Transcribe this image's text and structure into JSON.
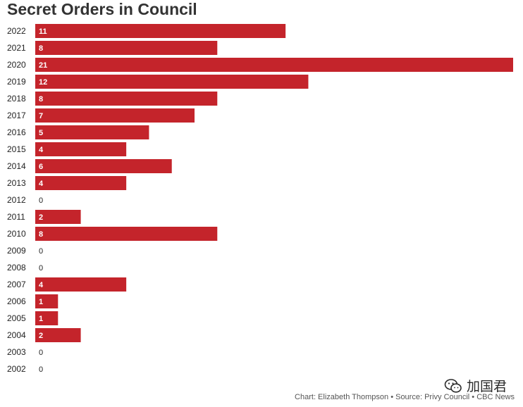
{
  "chart_data": {
    "type": "bar",
    "orientation": "horizontal",
    "title": "Secret Orders in Council",
    "xlabel": "",
    "ylabel": "",
    "xlim": [
      0,
      21
    ],
    "grid": false,
    "legend": "none",
    "color": "#c4242b",
    "categories": [
      "2022",
      "2021",
      "2020",
      "2019",
      "2018",
      "2017",
      "2016",
      "2015",
      "2014",
      "2013",
      "2012",
      "2011",
      "2010",
      "2009",
      "2008",
      "2007",
      "2006",
      "2005",
      "2004",
      "2003",
      "2002"
    ],
    "values": [
      11,
      8,
      21,
      12,
      8,
      7,
      5,
      4,
      6,
      4,
      0,
      2,
      8,
      0,
      0,
      4,
      1,
      1,
      2,
      0,
      0
    ]
  },
  "credit": "Chart: Elizabeth Thompson • Source: Privy Council • CBC News",
  "watermark": {
    "text": "加国君",
    "icon": "wechat-icon"
  }
}
